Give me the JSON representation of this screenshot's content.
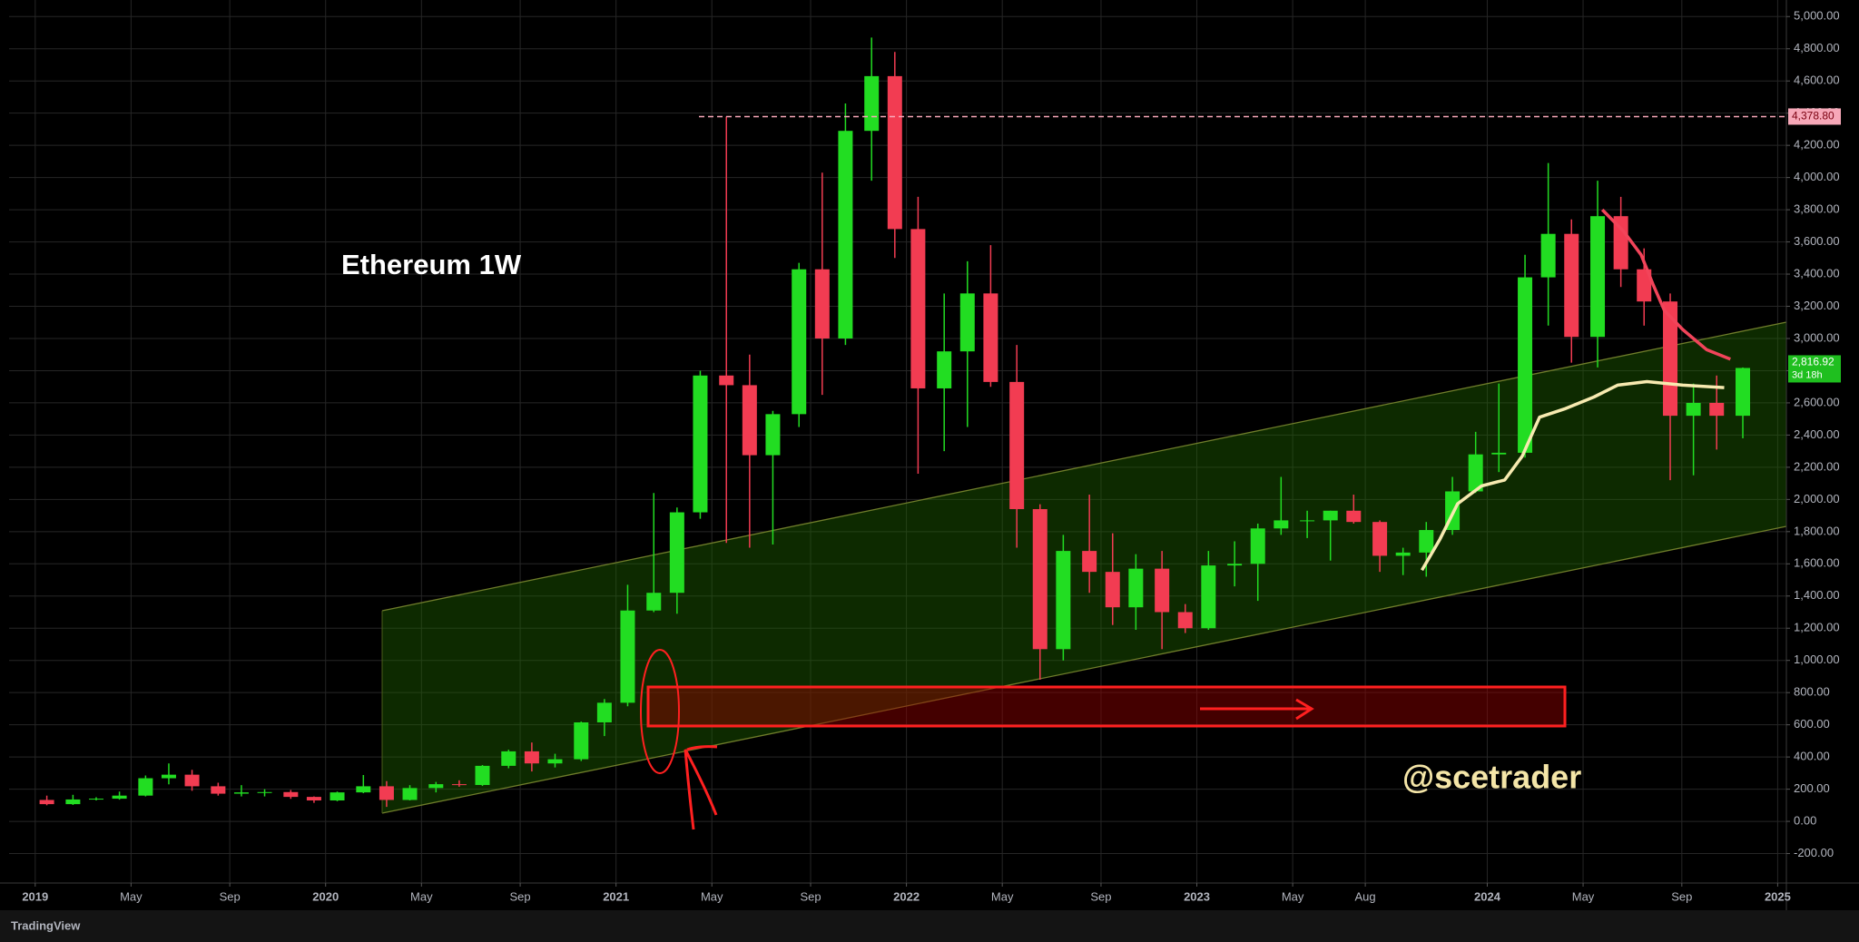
{
  "chart_data": {
    "type": "candlestick",
    "title": "Ethereum 1W",
    "annotation": "@scetrader",
    "up_color": "#22dd22",
    "down_color": "#f23c52",
    "grid": true,
    "xlim": [
      2018.91,
      2025.03
    ],
    "ylim": [
      -383,
      5103
    ],
    "xticks": [
      2019,
      {
        "value": 2019.33,
        "label": "May"
      },
      {
        "value": 2019.67,
        "label": "Sep"
      },
      2020,
      {
        "value": 2020.33,
        "label": "May"
      },
      {
        "value": 2020.67,
        "label": "Sep"
      },
      2021,
      {
        "value": 2021.33,
        "label": "May"
      },
      {
        "value": 2021.67,
        "label": "Sep"
      },
      2022,
      {
        "value": 2022.33,
        "label": "May"
      },
      {
        "value": 2022.67,
        "label": "Sep"
      },
      2023,
      {
        "value": 2023.33,
        "label": "May"
      },
      {
        "value": 2023.58,
        "label": "Aug"
      },
      2024,
      {
        "value": 2024.33,
        "label": "May"
      },
      {
        "value": 2024.67,
        "label": "Sep"
      },
      2025
    ],
    "yticks": [
      {
        "value": 5000,
        "label": "5,000.00"
      },
      {
        "value": 4800,
        "label": "4,800.00"
      },
      {
        "value": 4600,
        "label": "4,600.00"
      },
      {
        "value": 4400,
        "label": "4,400.00"
      },
      {
        "value": 4200,
        "label": "4,200.00"
      },
      {
        "value": 4000,
        "label": "4,000.00"
      },
      {
        "value": 3800,
        "label": "3,800.00"
      },
      {
        "value": 3600,
        "label": "3,600.00"
      },
      {
        "value": 3400,
        "label": "3,400.00"
      },
      {
        "value": 3200,
        "label": "3,200.00"
      },
      {
        "value": 3000,
        "label": "3,000.00"
      },
      {
        "value": 2800,
        "label": "2,800.00"
      },
      {
        "value": 2600,
        "label": "2,600.00"
      },
      {
        "value": 2400,
        "label": "2,400.00"
      },
      {
        "value": 2200,
        "label": "2,200.00"
      },
      {
        "value": 2000,
        "label": "2,000.00"
      },
      {
        "value": 1800,
        "label": "1,800.00"
      },
      {
        "value": 1600,
        "label": "1,600.00"
      },
      {
        "value": 1400,
        "label": "1,400.00"
      },
      {
        "value": 1200,
        "label": "1,200.00"
      },
      {
        "value": 1000,
        "label": "1,000.00"
      },
      {
        "value": 800,
        "label": "800.00"
      },
      {
        "value": 600,
        "label": "600.00"
      },
      {
        "value": 400,
        "label": "400.00"
      },
      {
        "value": 200,
        "label": "200.00"
      },
      {
        "value": 0,
        "label": "0.00"
      },
      {
        "value": -200,
        "label": "-200.00"
      }
    ],
    "x": [
      2019.04,
      2019.13,
      2019.21,
      2019.29,
      2019.38,
      2019.46,
      2019.54,
      2019.63,
      2019.71,
      2019.79,
      2019.88,
      2019.96,
      2020.04,
      2020.13,
      2020.21,
      2020.29,
      2020.38,
      2020.46,
      2020.54,
      2020.63,
      2020.71,
      2020.79,
      2020.88,
      2020.96,
      2021.04,
      2021.13,
      2021.21,
      2021.29,
      2021.38,
      2021.46,
      2021.54,
      2021.63,
      2021.71,
      2021.79,
      2021.88,
      2021.96,
      2022.04,
      2022.13,
      2022.21,
      2022.29,
      2022.38,
      2022.46,
      2022.54,
      2022.63,
      2022.71,
      2022.79,
      2022.88,
      2022.96,
      2023.04,
      2023.13,
      2023.21,
      2023.29,
      2023.38,
      2023.46,
      2023.54,
      2023.63,
      2023.71,
      2023.79,
      2023.88,
      2023.96,
      2024.04,
      2024.13,
      2024.21,
      2024.29,
      2024.38,
      2024.46,
      2024.54,
      2024.63,
      2024.71,
      2024.79,
      2024.88
    ],
    "open": [
      133,
      107,
      136,
      141,
      160,
      268,
      290,
      218,
      172,
      180,
      182,
      152,
      130,
      180,
      218,
      133,
      207,
      231,
      226,
      345,
      435,
      360,
      386,
      615,
      737,
      1310,
      1420,
      1920,
      2770,
      2710,
      2275,
      2530,
      3430,
      3000,
      4290,
      4630,
      3680,
      2690,
      2920,
      3280,
      2730,
      1940,
      1070,
      1680,
      1550,
      1330,
      1570,
      1300,
      1200,
      1590,
      1600,
      1820,
      1870,
      1870,
      1930,
      1860,
      1650,
      1670,
      1810,
      2050,
      2280,
      2290,
      3380,
      3650,
      3010,
      3760,
      3430,
      3230,
      2520,
      2600,
      2520
    ],
    "high": [
      160,
      165,
      150,
      185,
      285,
      360,
      320,
      240,
      225,
      200,
      195,
      155,
      185,
      288,
      250,
      225,
      245,
      255,
      350,
      445,
      490,
      420,
      620,
      760,
      1470,
      2040,
      1950,
      2800,
      4378.8,
      2900,
      2550,
      3470,
      4030,
      4460,
      4870,
      4780,
      3880,
      3280,
      3480,
      3580,
      2960,
      1970,
      1780,
      2030,
      1790,
      1660,
      1680,
      1350,
      1680,
      1740,
      1850,
      2140,
      1930,
      1930,
      2030,
      1870,
      1700,
      1860,
      2140,
      2420,
      2720,
      3520,
      4090,
      3740,
      3980,
      3880,
      3560,
      3280,
      2720,
      2770,
      2820
    ],
    "low": [
      100,
      102,
      130,
      135,
      155,
      230,
      190,
      160,
      155,
      155,
      140,
      115,
      125,
      175,
      90,
      130,
      180,
      215,
      220,
      330,
      310,
      335,
      375,
      530,
      715,
      1300,
      1290,
      1880,
      1730,
      1700,
      1720,
      2450,
      2650,
      2960,
      3980,
      3500,
      2160,
      2300,
      2450,
      2700,
      1700,
      880,
      1000,
      1420,
      1220,
      1190,
      1070,
      1170,
      1190,
      1460,
      1370,
      1780,
      1760,
      1620,
      1850,
      1550,
      1530,
      1520,
      1780,
      2040,
      2170,
      2260,
      3080,
      2850,
      2820,
      3320,
      3080,
      2120,
      2150,
      2310,
      2380
    ],
    "close": [
      107,
      136,
      141,
      160,
      268,
      290,
      218,
      172,
      180,
      182,
      152,
      130,
      180,
      218,
      133,
      207,
      231,
      226,
      345,
      435,
      360,
      386,
      615,
      737,
      1310,
      1420,
      1920,
      2770,
      2710,
      2275,
      2530,
      3430,
      3000,
      4290,
      4630,
      3680,
      2690,
      2920,
      3280,
      2730,
      1940,
      1070,
      1680,
      1550,
      1330,
      1570,
      1300,
      1200,
      1590,
      1600,
      1820,
      1870,
      1870,
      1930,
      1860,
      1650,
      1670,
      1810,
      2050,
      2280,
      2290,
      3380,
      3650,
      3010,
      3760,
      3430,
      3230,
      2520,
      2600,
      2520,
      2816.92
    ],
    "lines": [
      {
        "color": "#f7eab0",
        "x": [
          2023.775,
          2023.837,
          2023.898,
          2023.98,
          2024.06,
          2024.12,
          2024.18,
          2024.265,
          2024.367,
          2024.449,
          2024.55,
          2024.673,
          2024.816
        ],
        "values": [
          1561,
          1753,
          1973,
          2084,
          2121,
          2268,
          2511,
          2562,
          2636,
          2710,
          2732,
          2710,
          2695
        ]
      },
      {
        "color": "#f2445a",
        "x": [
          2024.396,
          2024.469,
          2024.53,
          2024.571,
          2024.61,
          2024.673,
          2024.755,
          2024.837
        ],
        "values": [
          3800,
          3667,
          3520,
          3336,
          3174,
          3056,
          2931,
          2872
        ]
      }
    ],
    "level": {
      "value": 4378.8,
      "label": "4,378.80",
      "color": "#f7a8b8"
    },
    "last_price": {
      "value": 2816.92,
      "label": "2,816.92",
      "countdown": "3d 18h",
      "color": "#1fbf1f"
    }
  },
  "footer": "TradingView"
}
